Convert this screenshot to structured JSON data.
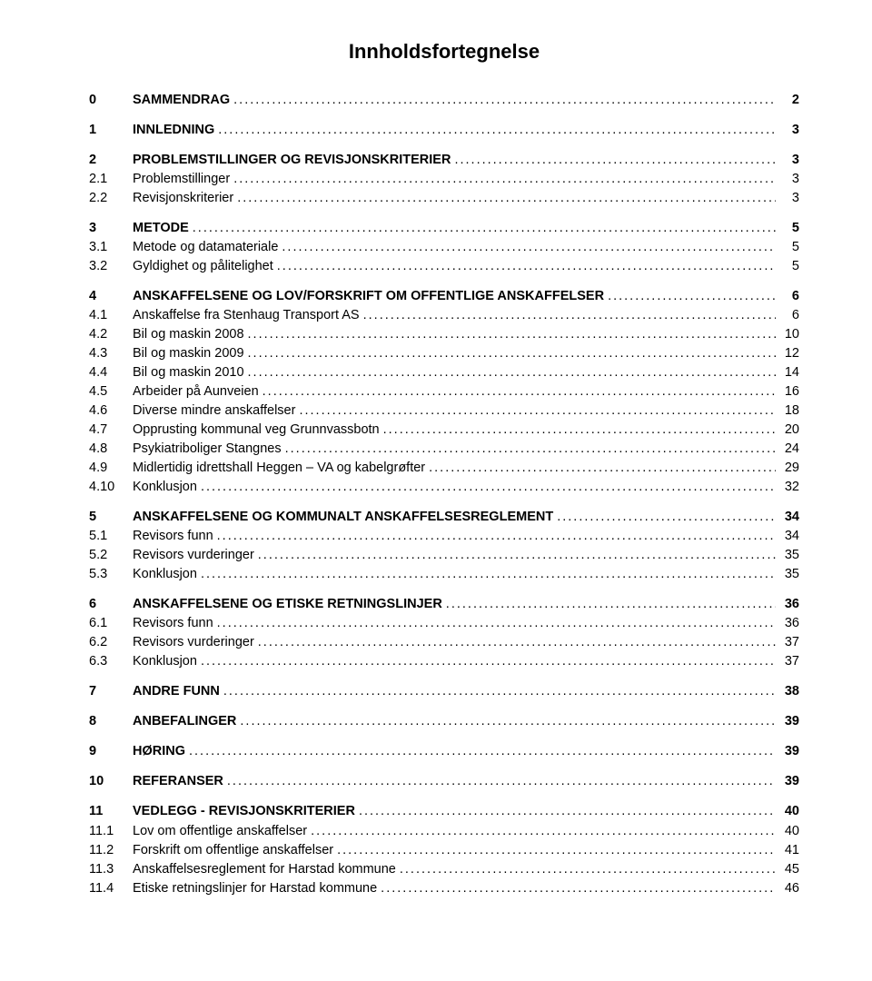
{
  "title": "Innholdsfortegnelse",
  "toc": [
    {
      "group": [
        {
          "num": "0",
          "label": "SAMMENDRAG",
          "page": "2",
          "bold": true
        }
      ]
    },
    {
      "group": [
        {
          "num": "1",
          "label": "INNLEDNING",
          "page": "3",
          "bold": true
        }
      ]
    },
    {
      "group": [
        {
          "num": "2",
          "label": "PROBLEMSTILLINGER OG REVISJONSKRITERIER",
          "page": "3",
          "bold": true
        },
        {
          "num": "2.1",
          "label": "Problemstillinger",
          "page": "3",
          "bold": false
        },
        {
          "num": "2.2",
          "label": "Revisjonskriterier",
          "page": "3",
          "bold": false
        }
      ]
    },
    {
      "group": [
        {
          "num": "3",
          "label": "METODE",
          "page": "5",
          "bold": true
        },
        {
          "num": "3.1",
          "label": "Metode og datamateriale",
          "page": "5",
          "bold": false
        },
        {
          "num": "3.2",
          "label": "Gyldighet og pålitelighet",
          "page": "5",
          "bold": false
        }
      ]
    },
    {
      "group": [
        {
          "num": "4",
          "label": "ANSKAFFELSENE OG LOV/FORSKRIFT OM OFFENTLIGE ANSKAFFELSER",
          "page": "6",
          "bold": true
        },
        {
          "num": "4.1",
          "label": "Anskaffelse fra Stenhaug Transport AS",
          "page": "6",
          "bold": false
        },
        {
          "num": "4.2",
          "label": "Bil og maskin 2008",
          "page": "10",
          "bold": false
        },
        {
          "num": "4.3",
          "label": "Bil og maskin 2009",
          "page": "12",
          "bold": false
        },
        {
          "num": "4.4",
          "label": "Bil og maskin 2010",
          "page": "14",
          "bold": false
        },
        {
          "num": "4.5",
          "label": "Arbeider på Aunveien",
          "page": "16",
          "bold": false
        },
        {
          "num": "4.6",
          "label": "Diverse mindre anskaffelser",
          "page": "18",
          "bold": false
        },
        {
          "num": "4.7",
          "label": "Opprusting kommunal veg Grunnvassbotn",
          "page": "20",
          "bold": false
        },
        {
          "num": "4.8",
          "label": "Psykiatriboliger Stangnes",
          "page": "24",
          "bold": false
        },
        {
          "num": "4.9",
          "label": "Midlertidig idrettshall Heggen – VA og kabelgrøfter",
          "page": "29",
          "bold": false
        },
        {
          "num": "4.10",
          "label": "Konklusjon",
          "page": "32",
          "bold": false
        }
      ]
    },
    {
      "group": [
        {
          "num": "5",
          "label": "ANSKAFFELSENE OG KOMMUNALT ANSKAFFELSESREGLEMENT",
          "page": "34",
          "bold": true
        },
        {
          "num": "5.1",
          "label": "Revisors funn",
          "page": "34",
          "bold": false
        },
        {
          "num": "5.2",
          "label": "Revisors vurderinger",
          "page": "35",
          "bold": false
        },
        {
          "num": "5.3",
          "label": "Konklusjon",
          "page": "35",
          "bold": false
        }
      ]
    },
    {
      "group": [
        {
          "num": "6",
          "label": "ANSKAFFELSENE OG ETISKE RETNINGSLINJER",
          "page": "36",
          "bold": true
        },
        {
          "num": "6.1",
          "label": "Revisors funn",
          "page": "36",
          "bold": false
        },
        {
          "num": "6.2",
          "label": "Revisors vurderinger",
          "page": "37",
          "bold": false
        },
        {
          "num": "6.3",
          "label": "Konklusjon",
          "page": "37",
          "bold": false
        }
      ]
    },
    {
      "group": [
        {
          "num": "7",
          "label": "ANDRE FUNN",
          "page": "38",
          "bold": true
        }
      ]
    },
    {
      "group": [
        {
          "num": "8",
          "label": "ANBEFALINGER",
          "page": "39",
          "bold": true
        }
      ]
    },
    {
      "group": [
        {
          "num": "9",
          "label": "HØRING",
          "page": "39",
          "bold": true
        }
      ]
    },
    {
      "group": [
        {
          "num": "10",
          "label": "REFERANSER",
          "page": "39",
          "bold": true
        }
      ]
    },
    {
      "group": [
        {
          "num": "11",
          "label": "VEDLEGG - REVISJONSKRITERIER",
          "page": "40",
          "bold": true
        },
        {
          "num": "11.1",
          "label": "Lov om offentlige anskaffelser",
          "page": "40",
          "bold": false
        },
        {
          "num": "11.2",
          "label": "Forskrift om offentlige anskaffelser",
          "page": "41",
          "bold": false
        },
        {
          "num": "11.3",
          "label": "Anskaffelsesreglement for Harstad kommune",
          "page": "45",
          "bold": false
        },
        {
          "num": "11.4",
          "label": "Etiske retningslinjer for Harstad kommune",
          "page": "46",
          "bold": false
        }
      ]
    }
  ]
}
